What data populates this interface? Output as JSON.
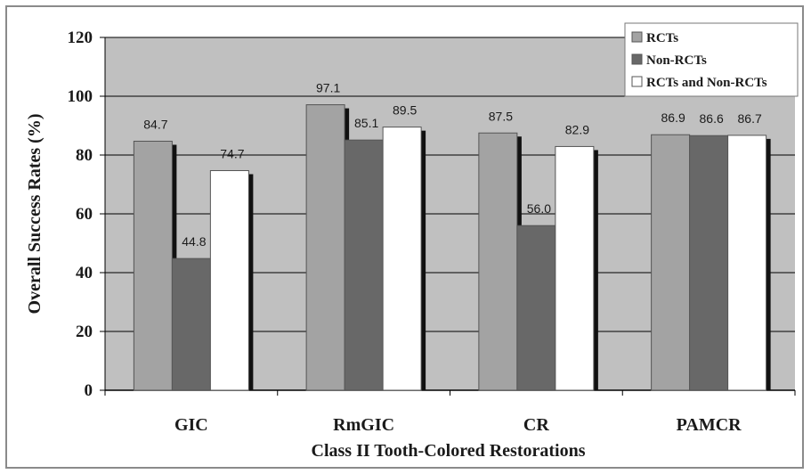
{
  "chart_data": {
    "type": "bar",
    "title": "",
    "xlabel": "Class II Tooth-Colored Restorations",
    "ylabel": "Overall Success Rates (%)",
    "ylim": [
      0,
      120
    ],
    "yticks": [
      "0",
      "20",
      "40",
      "60",
      "80",
      "100",
      "120"
    ],
    "categories": [
      "GIC",
      "RmGIC",
      "CR",
      "PAMCR"
    ],
    "series": [
      {
        "name": "RCTs",
        "values": [
          84.7,
          97.1,
          87.5,
          86.9
        ],
        "labels": [
          "84.7",
          "97.1",
          "87.5",
          "86.9"
        ],
        "color": "#a3a3a3"
      },
      {
        "name": "Non-RCTs",
        "values": [
          44.8,
          85.1,
          56.0,
          86.6
        ],
        "labels": [
          "44.8",
          "85.1",
          "56.0",
          "86.6"
        ],
        "color": "#686868"
      },
      {
        "name": "RCTs and Non-RCTs",
        "values": [
          74.7,
          89.5,
          82.9,
          86.7
        ],
        "labels": [
          "74.7",
          "89.5",
          "82.9",
          "86.7"
        ],
        "color": "#ffffff"
      }
    ],
    "grid": true,
    "plot_background": "#c0c0c0",
    "legend_position": "top-right"
  }
}
